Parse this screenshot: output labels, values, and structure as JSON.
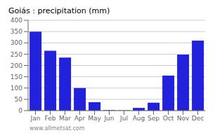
{
  "chart_data": {
    "type": "bar",
    "title": "Goiás : precipitation (mm)",
    "categories": [
      "Jan",
      "Feb",
      "Mar",
      "Apr",
      "May",
      "Jun",
      "Jul",
      "Aug",
      "Sep",
      "Oct",
      "Nov",
      "Dec"
    ],
    "values": [
      350,
      265,
      235,
      100,
      37,
      2,
      1,
      12,
      35,
      155,
      248,
      310
    ],
    "color": "#2222dd",
    "ylim": [
      0,
      400
    ],
    "yticks": [
      0,
      50,
      100,
      150,
      200,
      250,
      300,
      350,
      400
    ],
    "grid": true,
    "annotations": [
      "www.allmetsat.com"
    ]
  }
}
